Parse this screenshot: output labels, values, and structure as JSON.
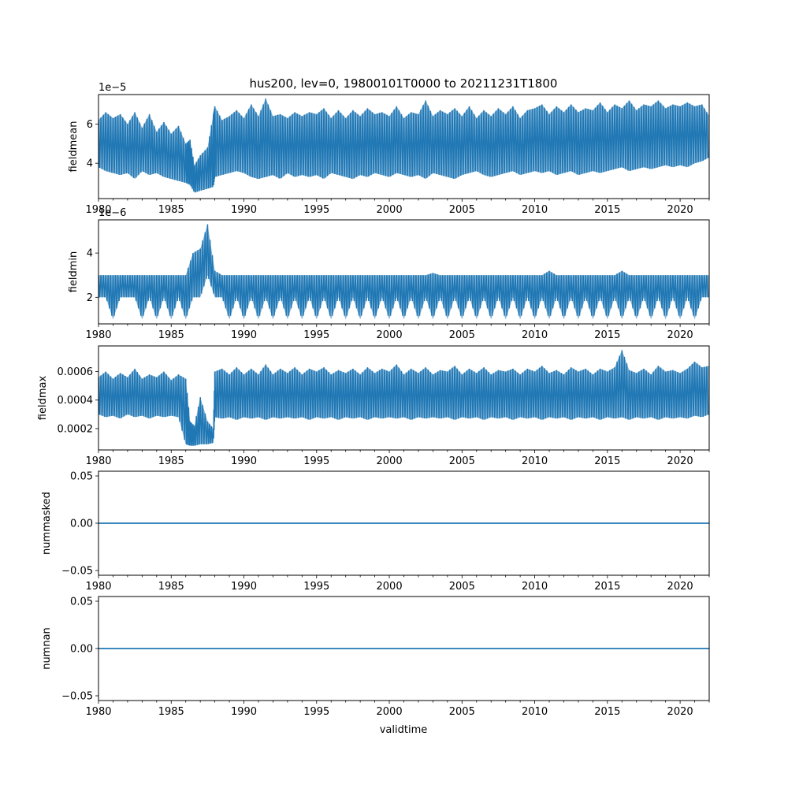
{
  "title": "hus200, lev=0, 19800101T0000 to 20211231T1800",
  "xlabel": "validtime",
  "colors": {
    "series": "#1f77b4",
    "axes": "#000000",
    "background": "#ffffff"
  },
  "chart_data": [
    {
      "type": "line",
      "ylabel": "fieldmean",
      "offset_text": "1e−5",
      "xlim": [
        1980,
        2022
      ],
      "ylim": [
        2.2,
        7.5
      ],
      "x_ticks": [
        "1980",
        "1985",
        "1990",
        "1995",
        "2000",
        "2005",
        "2010",
        "2015",
        "2020"
      ],
      "y_ticks": [
        "4",
        "6"
      ],
      "series": [
        {
          "x": [
            1980.0,
            1980.5,
            1981.0,
            1981.5,
            1982.0,
            1982.5,
            1983.0,
            1983.5,
            1984.0,
            1984.5,
            1985.0,
            1985.5,
            1986.0,
            1986.3,
            1986.6,
            1987.0,
            1987.5,
            1987.9,
            1988.0,
            1988.5,
            1989.0,
            1989.5,
            1990.0,
            1990.5,
            1991.0,
            1991.5,
            1992.0,
            1992.5,
            1993.0,
            1993.5,
            1994.0,
            1994.5,
            1995.0,
            1995.5,
            1996.0,
            1996.5,
            1997.0,
            1997.5,
            1998.0,
            1998.5,
            1999.0,
            1999.5,
            2000.0,
            2000.5,
            2001.0,
            2001.5,
            2002.0,
            2002.5,
            2003.0,
            2003.5,
            2004.0,
            2004.5,
            2005.0,
            2005.5,
            2006.0,
            2006.5,
            2007.0,
            2007.5,
            2008.0,
            2008.5,
            2009.0,
            2009.5,
            2010.0,
            2010.5,
            2011.0,
            2011.5,
            2012.0,
            2012.5,
            2013.0,
            2013.5,
            2014.0,
            2014.5,
            2015.0,
            2015.5,
            2016.0,
            2016.5,
            2017.0,
            2017.5,
            2018.0,
            2018.5,
            2019.0,
            2019.5,
            2020.0,
            2020.5,
            2021.0,
            2021.5,
            2022.0
          ],
          "min": [
            3.8,
            3.6,
            3.5,
            3.4,
            3.5,
            3.2,
            3.6,
            3.4,
            3.5,
            3.3,
            3.2,
            3.1,
            3.0,
            2.9,
            2.5,
            2.6,
            2.7,
            2.8,
            3.3,
            3.4,
            3.5,
            3.6,
            3.5,
            3.3,
            3.2,
            3.3,
            3.4,
            3.2,
            3.5,
            3.3,
            3.4,
            3.3,
            3.4,
            3.2,
            3.5,
            3.4,
            3.3,
            3.2,
            3.4,
            3.3,
            3.5,
            3.4,
            3.3,
            3.5,
            3.4,
            3.3,
            3.4,
            3.2,
            3.5,
            3.4,
            3.3,
            3.2,
            3.4,
            3.5,
            3.6,
            3.4,
            3.3,
            3.4,
            3.5,
            3.6,
            3.4,
            3.5,
            3.6,
            3.5,
            3.6,
            3.4,
            3.5,
            3.6,
            3.4,
            3.5,
            3.6,
            3.5,
            3.6,
            3.7,
            3.8,
            3.6,
            3.7,
            3.8,
            3.7,
            3.8,
            3.9,
            3.8,
            3.9,
            3.8,
            4.0,
            4.1,
            4.3
          ],
          "max": [
            6.2,
            6.6,
            6.3,
            6.5,
            6.0,
            6.6,
            5.8,
            6.5,
            5.6,
            6.1,
            5.5,
            5.9,
            5.0,
            5.2,
            3.9,
            4.4,
            4.8,
            6.5,
            6.9,
            6.2,
            6.4,
            6.7,
            6.3,
            7.0,
            6.4,
            7.3,
            6.4,
            6.5,
            6.3,
            6.6,
            6.4,
            6.6,
            6.5,
            6.8,
            6.3,
            6.7,
            6.3,
            6.7,
            6.4,
            6.8,
            6.5,
            6.6,
            6.4,
            6.9,
            6.3,
            6.6,
            6.5,
            7.2,
            6.4,
            6.7,
            6.5,
            6.8,
            6.4,
            6.9,
            6.3,
            6.7,
            6.4,
            6.8,
            6.5,
            6.9,
            6.3,
            6.7,
            6.8,
            7.0,
            6.5,
            6.9,
            6.6,
            7.0,
            6.6,
            6.8,
            6.7,
            7.1,
            6.6,
            7.0,
            6.8,
            7.2,
            6.7,
            7.0,
            6.9,
            7.2,
            6.8,
            7.0,
            6.9,
            7.1,
            6.9,
            7.0,
            6.4
          ]
        }
      ]
    },
    {
      "type": "line",
      "ylabel": "fieldmin",
      "offset_text": "1e−6",
      "xlim": [
        1980,
        2022
      ],
      "ylim": [
        0.8,
        5.5
      ],
      "x_ticks": [
        "1980",
        "1985",
        "1990",
        "1995",
        "2000",
        "2005",
        "2010",
        "2015",
        "2020"
      ],
      "y_ticks": [
        "2",
        "4"
      ],
      "series": [
        {
          "x": [
            1980.0,
            1980.5,
            1981.0,
            1981.5,
            1982.0,
            1982.5,
            1983.0,
            1983.5,
            1984.0,
            1984.5,
            1985.0,
            1985.5,
            1986.0,
            1986.5,
            1987.0,
            1987.5,
            1988.0,
            1988.5,
            1989.0,
            1989.5,
            1990.0,
            1990.5,
            1991.0,
            1991.5,
            1992.0,
            1992.5,
            1993.0,
            1993.5,
            1994.0,
            1994.5,
            1995.0,
            1995.5,
            1996.0,
            1996.5,
            1997.0,
            1997.5,
            1998.0,
            1998.5,
            1999.0,
            1999.5,
            2000.0,
            2000.5,
            2001.0,
            2001.5,
            2002.0,
            2002.5,
            2003.0,
            2003.5,
            2004.0,
            2004.5,
            2005.0,
            2005.5,
            2006.0,
            2006.5,
            2007.0,
            2007.5,
            2008.0,
            2008.5,
            2009.0,
            2009.5,
            2010.0,
            2010.5,
            2011.0,
            2011.5,
            2012.0,
            2012.5,
            2013.0,
            2013.5,
            2014.0,
            2014.5,
            2015.0,
            2015.5,
            2016.0,
            2016.5,
            2017.0,
            2017.5,
            2018.0,
            2018.5,
            2019.0,
            2019.5,
            2020.0,
            2020.5,
            2021.0,
            2021.5,
            2022.0
          ],
          "min": [
            2.0,
            2.0,
            1.0,
            2.0,
            2.0,
            2.0,
            1.0,
            2.0,
            1.0,
            2.0,
            1.0,
            2.0,
            1.0,
            2.0,
            2.0,
            3.0,
            2.0,
            2.0,
            1.0,
            2.0,
            1.0,
            2.0,
            1.0,
            2.0,
            1.0,
            2.0,
            1.0,
            2.0,
            1.0,
            2.0,
            1.0,
            2.0,
            1.0,
            2.0,
            1.0,
            2.0,
            1.0,
            2.0,
            1.0,
            2.0,
            1.0,
            2.0,
            1.0,
            2.0,
            1.0,
            2.0,
            1.0,
            2.0,
            1.0,
            2.0,
            1.0,
            2.0,
            1.0,
            2.0,
            1.0,
            2.0,
            1.0,
            2.0,
            1.0,
            2.0,
            1.0,
            2.0,
            1.0,
            2.0,
            1.0,
            2.0,
            1.0,
            2.0,
            1.0,
            2.0,
            1.0,
            2.0,
            1.0,
            2.0,
            1.0,
            2.0,
            1.0,
            2.0,
            1.0,
            2.0,
            1.0,
            2.0,
            1.0,
            2.0,
            2.0
          ],
          "max": [
            3.0,
            3.0,
            3.0,
            3.0,
            3.0,
            3.0,
            3.0,
            3.0,
            3.0,
            3.0,
            3.0,
            3.0,
            3.0,
            4.0,
            4.2,
            5.3,
            3.2,
            3.0,
            3.0,
            3.0,
            3.0,
            3.0,
            3.0,
            3.0,
            3.0,
            3.0,
            3.0,
            3.0,
            3.0,
            3.0,
            3.0,
            3.0,
            3.0,
            3.0,
            3.0,
            3.0,
            3.0,
            3.0,
            3.0,
            3.0,
            3.0,
            3.0,
            3.0,
            3.0,
            3.0,
            3.0,
            3.1,
            3.0,
            3.0,
            3.0,
            3.0,
            3.0,
            3.0,
            3.0,
            3.0,
            3.0,
            3.0,
            3.0,
            3.0,
            3.0,
            3.0,
            3.0,
            3.2,
            3.0,
            3.0,
            3.0,
            3.0,
            3.0,
            3.0,
            3.0,
            3.0,
            3.0,
            3.2,
            3.0,
            3.0,
            3.0,
            3.0,
            3.0,
            3.0,
            3.0,
            3.0,
            3.0,
            3.0,
            3.0,
            3.0
          ]
        }
      ]
    },
    {
      "type": "line",
      "ylabel": "fieldmax",
      "offset_text": "",
      "xlim": [
        1980,
        2022
      ],
      "ylim": [
        5e-05,
        0.00078
      ],
      "x_ticks": [
        "1980",
        "1985",
        "1990",
        "1995",
        "2000",
        "2005",
        "2010",
        "2015",
        "2020"
      ],
      "y_ticks": [
        "0.0002",
        "0.0004",
        "0.0006"
      ],
      "series": [
        {
          "x": [
            1980.0,
            1980.5,
            1981.0,
            1981.5,
            1982.0,
            1982.5,
            1983.0,
            1983.5,
            1984.0,
            1984.5,
            1985.0,
            1985.5,
            1986.0,
            1986.3,
            1986.6,
            1987.0,
            1987.5,
            1987.9,
            1988.0,
            1988.5,
            1989.0,
            1989.5,
            1990.0,
            1990.5,
            1991.0,
            1991.5,
            1992.0,
            1992.5,
            1993.0,
            1993.5,
            1994.0,
            1994.5,
            1995.0,
            1995.5,
            1996.0,
            1996.5,
            1997.0,
            1997.5,
            1998.0,
            1998.5,
            1999.0,
            1999.5,
            2000.0,
            2000.5,
            2001.0,
            2001.5,
            2002.0,
            2002.5,
            2003.0,
            2003.5,
            2004.0,
            2004.5,
            2005.0,
            2005.5,
            2006.0,
            2006.5,
            2007.0,
            2007.5,
            2008.0,
            2008.5,
            2009.0,
            2009.5,
            2010.0,
            2010.5,
            2011.0,
            2011.5,
            2012.0,
            2012.5,
            2013.0,
            2013.5,
            2014.0,
            2014.5,
            2015.0,
            2015.5,
            2016.0,
            2016.5,
            2017.0,
            2017.5,
            2018.0,
            2018.5,
            2019.0,
            2019.5,
            2020.0,
            2020.5,
            2021.0,
            2021.5,
            2022.0
          ],
          "min": [
            0.0003,
            0.00028,
            0.00029,
            0.00027,
            0.0003,
            0.00028,
            0.00029,
            0.00027,
            0.00029,
            0.00028,
            0.00029,
            0.00028,
            9e-05,
            8e-05,
            8e-05,
            9e-05,
            9e-05,
            0.0001,
            0.00028,
            0.00027,
            0.00028,
            0.00026,
            0.00028,
            0.00027,
            0.00028,
            0.00026,
            0.00028,
            0.00027,
            0.00028,
            0.00027,
            0.00028,
            0.00026,
            0.00028,
            0.00027,
            0.00028,
            0.00026,
            0.00028,
            0.00027,
            0.00028,
            0.00026,
            0.00028,
            0.00027,
            0.00028,
            0.00027,
            0.00028,
            0.00026,
            0.00028,
            0.00027,
            0.00028,
            0.00027,
            0.00028,
            0.00026,
            0.00028,
            0.00027,
            0.00028,
            0.00026,
            0.00028,
            0.00027,
            0.00028,
            0.00026,
            0.00028,
            0.00027,
            0.00028,
            0.00026,
            0.00028,
            0.00027,
            0.00028,
            0.00026,
            0.00028,
            0.00027,
            0.00028,
            0.00026,
            0.00028,
            0.00027,
            0.00028,
            0.00026,
            0.00028,
            0.00027,
            0.00028,
            0.00026,
            0.00028,
            0.00027,
            0.00028,
            0.00027,
            0.00029,
            0.00028,
            0.0003
          ],
          "max": [
            0.00056,
            0.0006,
            0.00055,
            0.00059,
            0.00056,
            0.00062,
            0.00055,
            0.00058,
            0.00056,
            0.0006,
            0.00054,
            0.00058,
            0.00055,
            0.00025,
            0.00022,
            0.00042,
            0.00025,
            0.0002,
            0.0006,
            0.00062,
            0.00058,
            0.00063,
            0.00058,
            0.00062,
            0.00058,
            0.00065,
            0.00058,
            0.00062,
            0.00059,
            0.00063,
            0.00058,
            0.00062,
            0.0006,
            0.00063,
            0.00058,
            0.00061,
            0.00059,
            0.00062,
            0.00058,
            0.00063,
            0.00059,
            0.00062,
            0.0006,
            0.00065,
            0.00058,
            0.00062,
            0.00059,
            0.00063,
            0.00058,
            0.00061,
            0.0006,
            0.00064,
            0.00058,
            0.00062,
            0.00059,
            0.00063,
            0.00058,
            0.00061,
            0.0006,
            0.00062,
            0.00058,
            0.00062,
            0.0006,
            0.00064,
            0.00059,
            0.00061,
            0.00058,
            0.00063,
            0.0006,
            0.00062,
            0.00058,
            0.00062,
            0.0006,
            0.00063,
            0.00075,
            0.00061,
            0.00059,
            0.00062,
            0.00058,
            0.00064,
            0.0006,
            0.00061,
            0.00059,
            0.00062,
            0.00067,
            0.00063,
            0.00064
          ]
        }
      ]
    },
    {
      "type": "line",
      "ylabel": "nummasked",
      "offset_text": "",
      "xlim": [
        1980,
        2022
      ],
      "ylim": [
        -0.055,
        0.055
      ],
      "x_ticks": [
        "1980",
        "1985",
        "1990",
        "1995",
        "2000",
        "2005",
        "2010",
        "2015",
        "2020"
      ],
      "y_ticks": [
        "−0.05",
        "0.00",
        "0.05"
      ],
      "series": [
        {
          "x": [
            1980,
            2022
          ],
          "y": [
            0,
            0
          ]
        }
      ]
    },
    {
      "type": "line",
      "ylabel": "numnan",
      "offset_text": "",
      "xlim": [
        1980,
        2022
      ],
      "ylim": [
        -0.055,
        0.055
      ],
      "x_ticks": [
        "1980",
        "1985",
        "1990",
        "1995",
        "2000",
        "2005",
        "2010",
        "2015",
        "2020"
      ],
      "y_ticks": [
        "−0.05",
        "0.00",
        "0.05"
      ],
      "series": [
        {
          "x": [
            1980,
            2022
          ],
          "y": [
            0,
            0
          ]
        }
      ]
    }
  ]
}
